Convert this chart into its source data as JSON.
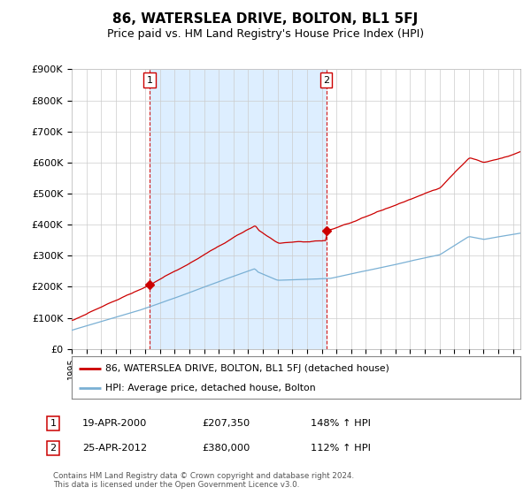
{
  "title": "86, WATERSLEA DRIVE, BOLTON, BL1 5FJ",
  "subtitle": "Price paid vs. HM Land Registry's House Price Index (HPI)",
  "ylim": [
    0,
    900000
  ],
  "yticks": [
    0,
    100000,
    200000,
    300000,
    400000,
    500000,
    600000,
    700000,
    800000,
    900000
  ],
  "ytick_labels": [
    "£0",
    "£100K",
    "£200K",
    "£300K",
    "£400K",
    "£500K",
    "£600K",
    "£700K",
    "£800K",
    "£900K"
  ],
  "xlim_start": 1995.0,
  "xlim_end": 2025.5,
  "sale1_x": 2000.3,
  "sale1_y": 207350,
  "sale1_label": "1",
  "sale2_x": 2012.3,
  "sale2_y": 380000,
  "sale2_label": "2",
  "red_line_color": "#cc0000",
  "blue_line_color": "#7ab0d4",
  "shade_color": "#ddeeff",
  "dashed_line_color": "#cc0000",
  "marker_box_color": "#cc0000",
  "legend_label_red": "86, WATERSLEA DRIVE, BOLTON, BL1 5FJ (detached house)",
  "legend_label_blue": "HPI: Average price, detached house, Bolton",
  "table_row1": [
    "1",
    "19-APR-2000",
    "£207,350",
    "148% ↑ HPI"
  ],
  "table_row2": [
    "2",
    "25-APR-2012",
    "£380,000",
    "112% ↑ HPI"
  ],
  "footnote": "Contains HM Land Registry data © Crown copyright and database right 2024.\nThis data is licensed under the Open Government Licence v3.0.",
  "background_color": "#ffffff",
  "grid_color": "#cccccc",
  "title_fontsize": 11,
  "subtitle_fontsize": 9
}
